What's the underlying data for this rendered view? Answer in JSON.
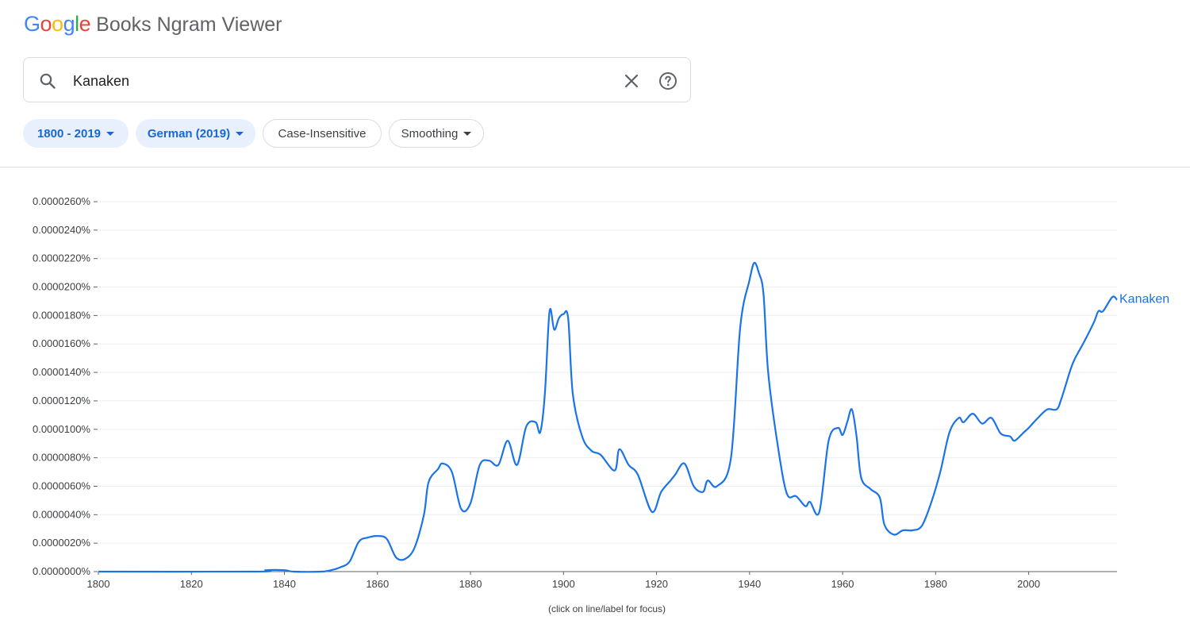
{
  "logo": {
    "letters": [
      {
        "ch": "G",
        "color": "#4285f4"
      },
      {
        "ch": "o",
        "color": "#ea4335"
      },
      {
        "ch": "o",
        "color": "#fbbc05"
      },
      {
        "ch": "g",
        "color": "#4285f4"
      },
      {
        "ch": "l",
        "color": "#34a853"
      },
      {
        "ch": "e",
        "color": "#ea4335"
      }
    ],
    "product": "Books Ngram Viewer"
  },
  "search": {
    "value": "Kanaken",
    "search_icon": "search-icon",
    "clear_icon": "close-icon",
    "help_icon": "help-circle-icon"
  },
  "filters": {
    "year_range": "1800 - 2019",
    "corpus": "German (2019)",
    "case": "Case-Insensitive",
    "smoothing": "Smoothing"
  },
  "chart_data": {
    "type": "line",
    "xlabel": "",
    "ylabel": "",
    "xlim": [
      1800,
      2019
    ],
    "ylim": [
      0,
      2.6e-05
    ],
    "x_ticks": [
      1800,
      1820,
      1840,
      1860,
      1880,
      1900,
      1920,
      1940,
      1960,
      1980,
      2000
    ],
    "y_ticks": [
      "0.0000000%",
      "0.0000020%",
      "0.0000040%",
      "0.0000060%",
      "0.0000080%",
      "0.0000100%",
      "0.0000120%",
      "0.0000140%",
      "0.0000160%",
      "0.0000180%",
      "0.0000200%",
      "0.0000220%",
      "0.0000240%",
      "0.0000260%"
    ],
    "grid": true,
    "line_color": "#1a73e8",
    "series": [
      {
        "name": "Kanaken",
        "points": [
          [
            1800,
            0
          ],
          [
            1834,
            0
          ],
          [
            1836,
            1e-07
          ],
          [
            1840,
            1e-07
          ],
          [
            1842,
            0
          ],
          [
            1848,
            0
          ],
          [
            1850,
            1e-07
          ],
          [
            1852,
            3e-07
          ],
          [
            1854,
            7e-07
          ],
          [
            1856,
            2.1e-06
          ],
          [
            1858,
            2.4e-06
          ],
          [
            1860,
            2.5e-06
          ],
          [
            1862,
            2.3e-06
          ],
          [
            1864,
            1e-06
          ],
          [
            1866,
            9e-07
          ],
          [
            1868,
            1.7e-06
          ],
          [
            1870,
            4e-06
          ],
          [
            1871,
            6.3e-06
          ],
          [
            1873,
            7.2e-06
          ],
          [
            1874,
            7.6e-06
          ],
          [
            1876,
            7e-06
          ],
          [
            1878,
            4.4e-06
          ],
          [
            1880,
            4.8e-06
          ],
          [
            1882,
            7.5e-06
          ],
          [
            1884,
            7.8e-06
          ],
          [
            1886,
            7.5e-06
          ],
          [
            1888,
            9.2e-06
          ],
          [
            1890,
            7.5e-06
          ],
          [
            1892,
            1.02e-05
          ],
          [
            1894,
            1.05e-05
          ],
          [
            1895,
            9.8e-06
          ],
          [
            1896,
            1.25e-05
          ],
          [
            1897,
            1.83e-05
          ],
          [
            1898,
            1.7e-05
          ],
          [
            1899,
            1.78e-05
          ],
          [
            1900,
            1.81e-05
          ],
          [
            1901,
            1.78e-05
          ],
          [
            1902,
            1.25e-05
          ],
          [
            1904,
            9.5e-06
          ],
          [
            1906,
            8.5e-06
          ],
          [
            1908,
            8.2e-06
          ],
          [
            1911,
            7.1e-06
          ],
          [
            1912,
            8.6e-06
          ],
          [
            1914,
            7.5e-06
          ],
          [
            1916,
            6.8e-06
          ],
          [
            1919,
            4.2e-06
          ],
          [
            1921,
            5.6e-06
          ],
          [
            1923,
            6.4e-06
          ],
          [
            1924,
            6.8e-06
          ],
          [
            1926,
            7.6e-06
          ],
          [
            1928,
            6e-06
          ],
          [
            1930,
            5.6e-06
          ],
          [
            1931,
            6.4e-06
          ],
          [
            1933,
            6e-06
          ],
          [
            1936,
            8e-06
          ],
          [
            1938,
            1.72e-05
          ],
          [
            1940,
            2.05e-05
          ],
          [
            1941,
            2.17e-05
          ],
          [
            1942,
            2.1e-05
          ],
          [
            1943,
            1.95e-05
          ],
          [
            1944,
            1.4e-05
          ],
          [
            1946,
            9e-06
          ],
          [
            1948,
            5.5e-06
          ],
          [
            1950,
            5.3e-06
          ],
          [
            1952,
            4.6e-06
          ],
          [
            1953,
            4.9e-06
          ],
          [
            1955,
            4.2e-06
          ],
          [
            1957,
            9.2e-06
          ],
          [
            1959,
            1.01e-05
          ],
          [
            1960,
            9.6e-06
          ],
          [
            1961,
            1.05e-05
          ],
          [
            1962,
            1.14e-05
          ],
          [
            1963,
            9.5e-06
          ],
          [
            1964,
            6.6e-06
          ],
          [
            1966,
            5.8e-06
          ],
          [
            1968,
            5.2e-06
          ],
          [
            1969,
            3.3e-06
          ],
          [
            1971,
            2.6e-06
          ],
          [
            1973,
            2.9e-06
          ],
          [
            1975,
            2.9e-06
          ],
          [
            1977,
            3.2e-06
          ],
          [
            1979,
            4.8e-06
          ],
          [
            1981,
            7e-06
          ],
          [
            1983,
            9.8e-06
          ],
          [
            1985,
            1.08e-05
          ],
          [
            1986,
            1.05e-05
          ],
          [
            1988,
            1.11e-05
          ],
          [
            1990,
            1.04e-05
          ],
          [
            1992,
            1.08e-05
          ],
          [
            1994,
            9.7e-06
          ],
          [
            1996,
            9.5e-06
          ],
          [
            1997,
            9.2e-06
          ],
          [
            1999,
            9.8e-06
          ],
          [
            2000,
            1.01e-05
          ],
          [
            2002,
            1.08e-05
          ],
          [
            2004,
            1.14e-05
          ],
          [
            2006,
            1.14e-05
          ],
          [
            2007,
            1.21e-05
          ],
          [
            2009,
            1.42e-05
          ],
          [
            2010,
            1.5e-05
          ],
          [
            2012,
            1.62e-05
          ],
          [
            2014,
            1.75e-05
          ],
          [
            2015,
            1.83e-05
          ],
          [
            2016,
            1.83e-05
          ],
          [
            2018,
            1.93e-05
          ],
          [
            2019,
            1.91e-05
          ]
        ]
      }
    ]
  },
  "footnote": "(click on line/label for focus)"
}
